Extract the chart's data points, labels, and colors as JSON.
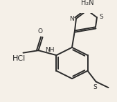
{
  "background_color": "#f5f0e8",
  "bond_color": "#2a2a2a",
  "text_color": "#2a2a2a",
  "line_width": 1.4,
  "figsize": [
    1.69,
    1.48
  ],
  "dpi": 100,
  "hcl_label": "HCl",
  "amino_label": "H₂N",
  "thiazole_N_label": "N",
  "thiazole_S_label": "S",
  "nh_label": "NH",
  "o_label": "O",
  "s_label": "S"
}
